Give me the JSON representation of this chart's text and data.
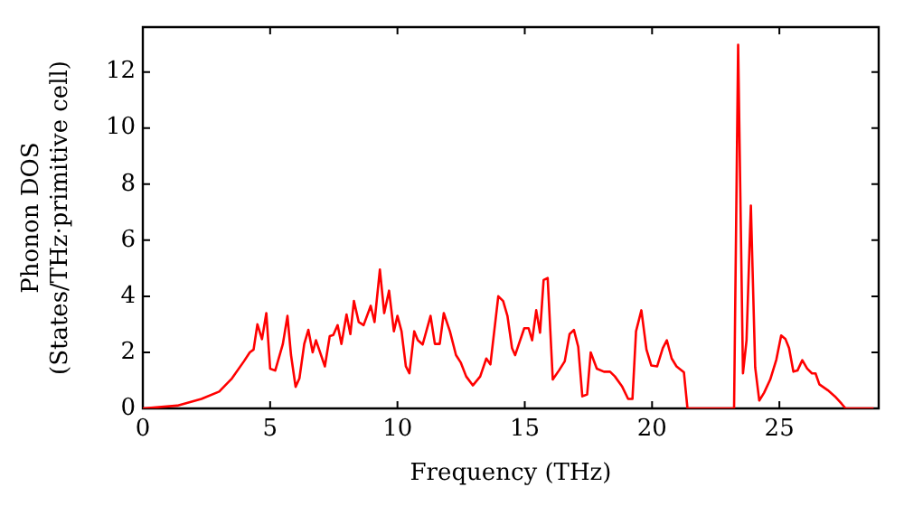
{
  "chart_data": {
    "type": "line",
    "xlabel": "Frequency (THz)",
    "ylabel": "Phonon DOS\n(States/THz·primitive cell)",
    "xlim": [
      0,
      28.9
    ],
    "ylim": [
      0,
      13.6
    ],
    "xticks": [
      0,
      5,
      10,
      15,
      20,
      25
    ],
    "yticks": [
      0,
      2,
      4,
      6,
      8,
      10,
      12
    ],
    "grid": false,
    "legend": false,
    "marker": "none",
    "line_style": "solid",
    "series": [
      {
        "color": "#ff0000",
        "x": [
          0,
          1.35,
          2.3,
          3.0,
          3.5,
          3.97,
          4.2,
          4.35,
          4.5,
          4.68,
          4.85,
          5.0,
          5.2,
          5.5,
          5.68,
          5.82,
          6.0,
          6.15,
          6.34,
          6.5,
          6.67,
          6.8,
          7.15,
          7.34,
          7.48,
          7.65,
          7.8,
          8.0,
          8.15,
          8.29,
          8.48,
          8.67,
          8.95,
          9.1,
          9.31,
          9.48,
          9.67,
          9.86,
          10.0,
          10.16,
          10.33,
          10.47,
          10.66,
          10.8,
          10.99,
          11.3,
          11.47,
          11.66,
          11.82,
          12.06,
          12.3,
          12.49,
          12.7,
          12.96,
          13.25,
          13.49,
          13.65,
          13.96,
          14.15,
          14.32,
          14.5,
          14.62,
          14.98,
          15.15,
          15.29,
          15.45,
          15.6,
          15.74,
          15.9,
          16.1,
          16.34,
          16.57,
          16.76,
          16.93,
          17.1,
          17.26,
          17.45,
          17.59,
          17.83,
          18.11,
          18.35,
          18.54,
          18.83,
          19.06,
          19.23,
          19.37,
          19.58,
          19.78,
          19.97,
          20.2,
          20.42,
          20.58,
          20.77,
          20.96,
          21.25,
          21.39,
          23.22,
          23.38,
          23.57,
          23.71,
          23.88,
          24.05,
          24.21,
          24.4,
          24.64,
          24.88,
          25.07,
          25.24,
          25.38,
          25.55,
          25.71,
          25.9,
          26.09,
          26.28,
          26.42,
          26.57,
          26.9,
          27.18,
          27.44,
          27.6,
          28.7
        ],
        "values": [
          0,
          0.1,
          0.34,
          0.6,
          1.07,
          1.68,
          2.0,
          2.1,
          3.0,
          2.47,
          3.4,
          1.42,
          1.35,
          2.3,
          3.3,
          1.9,
          0.77,
          1.07,
          2.3,
          2.8,
          2.0,
          2.43,
          1.5,
          2.58,
          2.62,
          2.97,
          2.3,
          3.35,
          2.65,
          3.83,
          3.08,
          2.97,
          3.66,
          3.08,
          4.95,
          3.4,
          4.2,
          2.75,
          3.3,
          2.75,
          1.5,
          1.25,
          2.75,
          2.43,
          2.28,
          3.3,
          2.3,
          2.3,
          3.4,
          2.75,
          1.9,
          1.63,
          1.14,
          0.82,
          1.14,
          1.78,
          1.57,
          4.0,
          3.83,
          3.3,
          2.15,
          1.9,
          2.86,
          2.86,
          2.43,
          3.5,
          2.7,
          4.58,
          4.65,
          1.03,
          1.35,
          1.68,
          2.65,
          2.8,
          2.2,
          0.43,
          0.5,
          2.0,
          1.42,
          1.31,
          1.31,
          1.14,
          0.77,
          0.34,
          0.34,
          2.75,
          3.5,
          2.1,
          1.53,
          1.5,
          2.15,
          2.43,
          1.78,
          1.5,
          1.29,
          0,
          0,
          12.97,
          1.25,
          2.43,
          7.23,
          1.46,
          0.28,
          0.56,
          1.03,
          1.74,
          2.6,
          2.47,
          2.15,
          1.31,
          1.35,
          1.72,
          1.42,
          1.25,
          1.25,
          0.86,
          0.65,
          0.43,
          0.17,
          0,
          0
        ]
      }
    ]
  }
}
